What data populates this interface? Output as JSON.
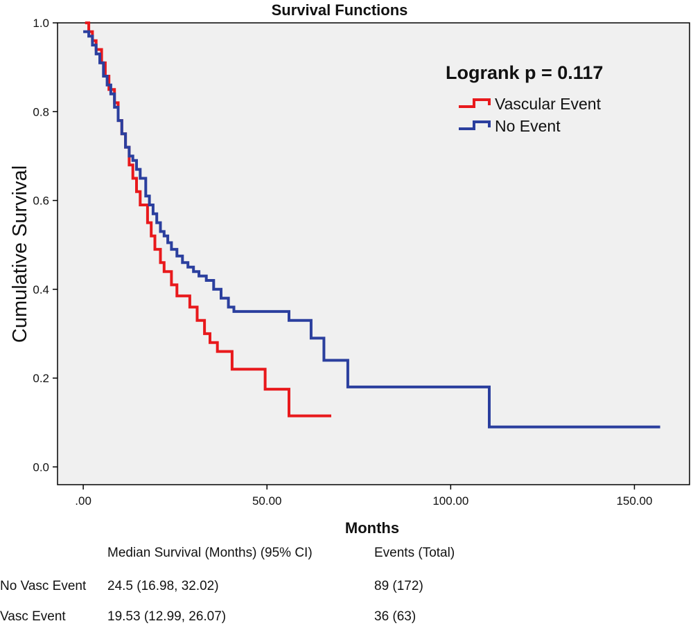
{
  "colors": {
    "plot_background": "#f0f0f0",
    "axis": "#000000",
    "vascular_event": "#e8191c",
    "no_event": "#2b3f9e"
  },
  "chart_data": {
    "type": "line",
    "title": "Survival Functions",
    "xlabel": "Months",
    "ylabel": "Cumulative Survival",
    "xlim": [
      -7,
      165
    ],
    "ylim": [
      -0.04,
      1.0
    ],
    "x_ticks": [
      0,
      50,
      100,
      150
    ],
    "x_tick_labels": [
      ".00",
      "50.00",
      "100.00",
      "150.00"
    ],
    "y_ticks": [
      0.0,
      0.2,
      0.4,
      0.6,
      0.8,
      1.0
    ],
    "y_tick_labels": [
      "0.0",
      "0.2",
      "0.4",
      "0.6",
      "0.8",
      "1.0"
    ],
    "grid": false,
    "step": true,
    "legend_placement": "top-right",
    "annotation": "Logrank p = 0.117",
    "series": [
      {
        "name": "Vascular Event",
        "color_key": "vascular_event",
        "x": [
          0.5,
          1.5,
          2.5,
          3.5,
          5.0,
          6.0,
          7.0,
          8.5,
          9.5,
          10.5,
          11.5,
          12.5,
          13.5,
          14.5,
          15.5,
          17.5,
          18.5,
          19.5,
          21.0,
          22.0,
          24.0,
          25.5,
          26.5,
          29.0,
          31.0,
          33.0,
          34.5,
          36.5,
          40.5,
          44.0,
          49.5,
          56.0,
          67.5
        ],
        "y": [
          1.0,
          0.98,
          0.96,
          0.94,
          0.91,
          0.88,
          0.85,
          0.82,
          0.78,
          0.75,
          0.72,
          0.68,
          0.65,
          0.62,
          0.59,
          0.55,
          0.52,
          0.49,
          0.46,
          0.44,
          0.41,
          0.385,
          0.385,
          0.36,
          0.33,
          0.3,
          0.28,
          0.26,
          0.22,
          0.22,
          0.175,
          0.115,
          0.115
        ]
      },
      {
        "name": "No Event",
        "color_key": "no_event",
        "x": [
          0,
          1.5,
          2.5,
          3.5,
          4.5,
          5.5,
          6.5,
          7.5,
          8.5,
          9.5,
          10.5,
          11.5,
          12.5,
          13.5,
          14.5,
          15.5,
          17.0,
          18.0,
          19.0,
          20.0,
          21.0,
          22.0,
          23.0,
          24.0,
          25.5,
          27.0,
          28.5,
          30.0,
          31.5,
          33.5,
          35.5,
          37.5,
          39.5,
          41.0,
          43.0,
          49.5,
          56.0,
          62.0,
          64.0,
          65.5,
          72.0,
          110.5,
          157.0
        ],
        "y": [
          0.98,
          0.97,
          0.95,
          0.93,
          0.91,
          0.88,
          0.86,
          0.84,
          0.81,
          0.78,
          0.75,
          0.72,
          0.7,
          0.69,
          0.67,
          0.65,
          0.61,
          0.59,
          0.57,
          0.55,
          0.53,
          0.52,
          0.505,
          0.49,
          0.475,
          0.46,
          0.45,
          0.44,
          0.43,
          0.42,
          0.4,
          0.38,
          0.36,
          0.35,
          0.35,
          0.35,
          0.33,
          0.29,
          0.29,
          0.24,
          0.18,
          0.09,
          0.09
        ]
      }
    ]
  },
  "summary": {
    "header_median": "Median Survival (Months) (95% CI)",
    "header_events": "Events (Total)",
    "rows": [
      {
        "label": "No Vasc Event",
        "median": "24.5 (16.98, 32.02)",
        "events": "89 (172)"
      },
      {
        "label": "Vasc Event",
        "median": "19.53 (12.99, 26.07)",
        "events": "36 (63)"
      }
    ]
  }
}
